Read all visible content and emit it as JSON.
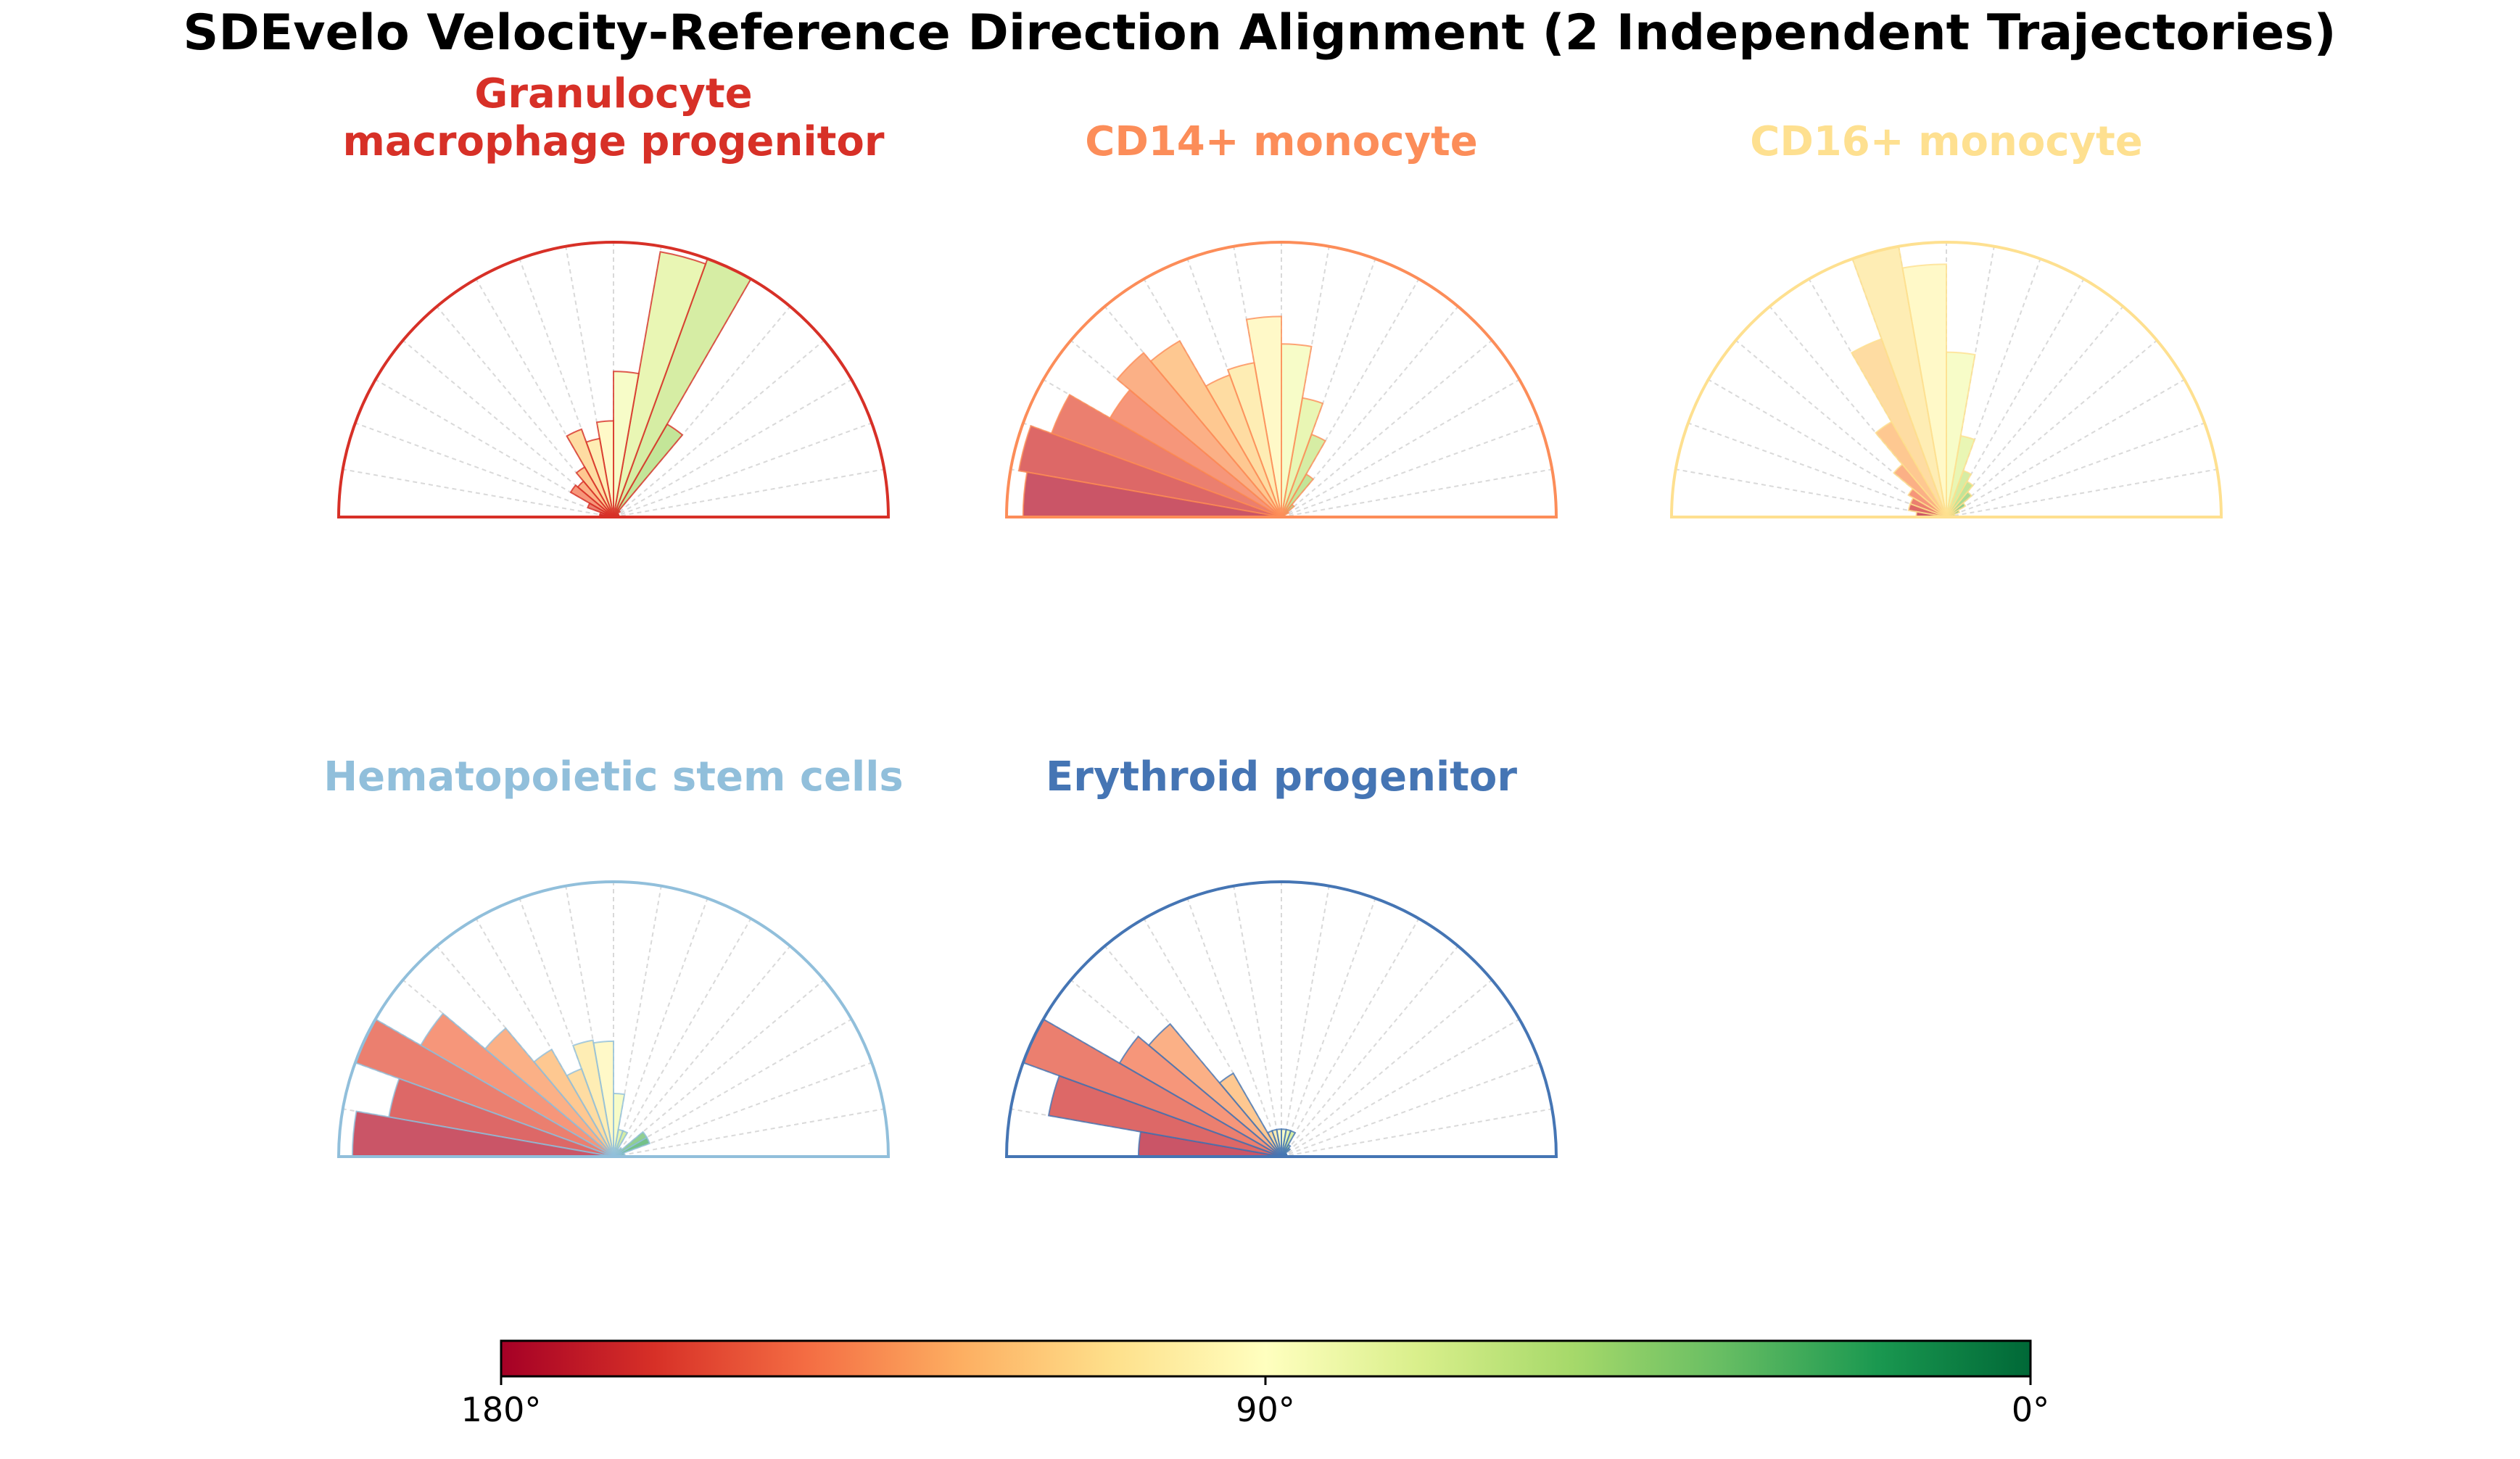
{
  "title": "SDEvelo Velocity-Reference Direction Alignment (2 Independent Trajectories)",
  "chart_data": [
    {
      "type": "bar",
      "subtype": "polar-half-histogram",
      "title_lines": [
        "Granulocyte",
        "macrophage progenitor"
      ],
      "color": "#d73027",
      "bin_edges_deg": [
        0,
        10,
        20,
        30,
        40,
        50,
        60,
        70,
        80,
        90,
        100,
        110,
        120,
        130,
        140,
        150,
        160,
        170,
        180
      ],
      "values": [
        0.02,
        0.02,
        0.02,
        0.02,
        0.03,
        0.39,
        1.0,
        0.98,
        0.53,
        0.35,
        0.29,
        0.34,
        0.21,
        0.17,
        0.18,
        0.1,
        0.05,
        0.05
      ]
    },
    {
      "type": "bar",
      "subtype": "polar-half-histogram",
      "title_lines": [
        "CD14+ monocyte"
      ],
      "color": "#fc8d59",
      "bin_edges_deg": [
        0,
        10,
        20,
        30,
        40,
        50,
        60,
        70,
        80,
        90,
        100,
        110,
        120,
        130,
        140,
        150,
        160,
        170,
        180
      ],
      "values": [
        0.01,
        0.01,
        0.01,
        0.03,
        0.06,
        0.18,
        0.32,
        0.44,
        0.63,
        0.73,
        0.57,
        0.55,
        0.74,
        0.78,
        0.72,
        0.89,
        0.97,
        0.94
      ]
    },
    {
      "type": "bar",
      "subtype": "polar-half-histogram",
      "title_lines": [
        "CD16+ monocyte"
      ],
      "color": "#fee090",
      "bin_edges_deg": [
        0,
        10,
        20,
        30,
        40,
        50,
        60,
        70,
        80,
        90,
        100,
        110,
        120,
        130,
        140,
        150,
        160,
        170,
        180
      ],
      "values": [
        0.02,
        0.03,
        0.05,
        0.08,
        0.12,
        0.15,
        0.18,
        0.3,
        0.6,
        0.92,
        1.0,
        0.69,
        0.4,
        0.25,
        0.16,
        0.14,
        0.14,
        0.11
      ]
    },
    {
      "type": "bar",
      "subtype": "polar-half-histogram",
      "title_lines": [
        "Hematopoietic stem cells"
      ],
      "color": "#91bfdb",
      "bin_edges_deg": [
        0,
        10,
        20,
        30,
        40,
        50,
        60,
        70,
        80,
        90,
        100,
        110,
        120,
        130,
        140,
        150,
        160,
        170,
        180
      ],
      "values": [
        0.02,
        0.04,
        0.14,
        0.14,
        0.04,
        0.03,
        0.1,
        0.1,
        0.23,
        0.42,
        0.43,
        0.34,
        0.45,
        0.61,
        0.81,
        1.0,
        0.83,
        0.95
      ]
    },
    {
      "type": "bar",
      "subtype": "polar-half-histogram",
      "title_lines": [
        "Erythroid progenitor"
      ],
      "color": "#4575b4",
      "bin_edges_deg": [
        0,
        10,
        20,
        30,
        40,
        50,
        60,
        70,
        80,
        90,
        100,
        110,
        120,
        130,
        140,
        150,
        160,
        170,
        180
      ],
      "values": [
        0.02,
        0.02,
        0.02,
        0.02,
        0.04,
        0.05,
        0.1,
        0.1,
        0.1,
        0.1,
        0.1,
        0.1,
        0.35,
        0.63,
        0.68,
        1.0,
        0.86,
        0.52
      ]
    }
  ],
  "colorbar": {
    "colormap": "RdYlGn",
    "range_deg": [
      180,
      0
    ],
    "ticks": [
      "180°",
      "90°",
      "0°"
    ]
  }
}
